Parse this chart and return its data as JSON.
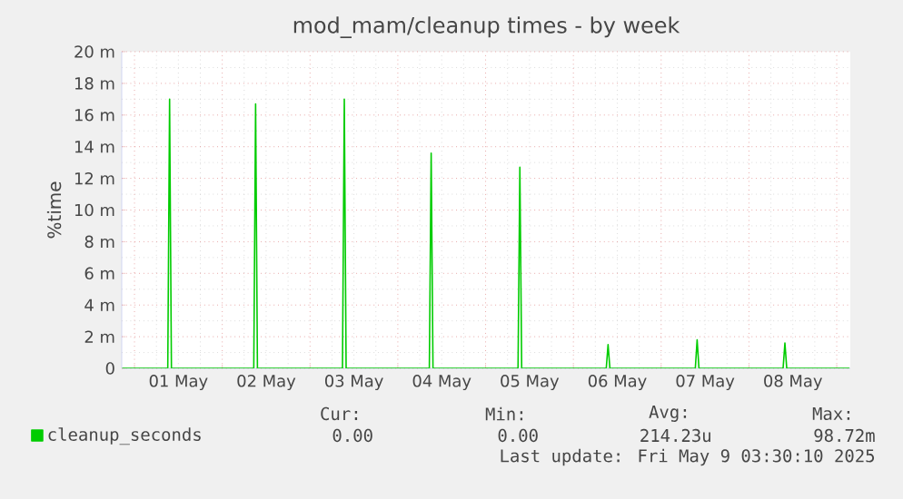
{
  "chart_data": {
    "type": "line",
    "title": "mod_mam/cleanup times - by week",
    "ylabel": "%time",
    "xlim": [
      "2025-04-30T20:31",
      "2025-05-09T03:43"
    ],
    "ylim": [
      0,
      20
    ],
    "xticks": [
      {
        "value": "2025-05-01",
        "label": null
      },
      {
        "value": "2025-05-02",
        "label": null
      },
      {
        "value": "2025-05-03",
        "label": null
      },
      {
        "value": "2025-05-04",
        "label": null
      },
      {
        "value": "2025-05-05",
        "label": null
      },
      {
        "value": "2025-05-06",
        "label": null
      },
      {
        "value": "2025-05-07",
        "label": null
      },
      {
        "value": "2025-05-08",
        "label": null
      },
      {
        "value": "2025-05-09",
        "label": null
      },
      {
        "value": "2025-05-01T12:00",
        "label": "01 May"
      },
      {
        "value": "2025-05-02T12:00",
        "label": "02 May"
      },
      {
        "value": "2025-05-03T12:00",
        "label": "03 May"
      },
      {
        "value": "2025-05-04T12:00",
        "label": "04 May"
      },
      {
        "value": "2025-05-05T12:00",
        "label": "05 May"
      },
      {
        "value": "2025-05-06T12:00",
        "label": "06 May"
      },
      {
        "value": "2025-05-07T12:00",
        "label": "07 May"
      },
      {
        "value": "2025-05-08T12:00",
        "label": "08 May"
      }
    ],
    "yticks": [
      {
        "value": 0,
        "label": "0"
      },
      {
        "value": 2,
        "label": "2 m"
      },
      {
        "value": 4,
        "label": "4 m"
      },
      {
        "value": 6,
        "label": "6 m"
      },
      {
        "value": 8,
        "label": "8 m"
      },
      {
        "value": 10,
        "label": "10 m"
      },
      {
        "value": 12,
        "label": "12 m"
      },
      {
        "value": 14,
        "label": "14 m"
      },
      {
        "value": 16,
        "label": "16 m"
      },
      {
        "value": 18,
        "label": "18 m"
      },
      {
        "value": 20,
        "label": "20 m"
      }
    ],
    "grid": true,
    "legend": "bottom",
    "series": [
      {
        "name": "cleanup_seconds",
        "color": "#00cc00",
        "x": [
          "2025-04-30T20:40",
          "2025-05-01T09:06",
          "2025-05-01T09:36",
          "2025-05-01T10:06",
          "2025-05-02T08:37",
          "2025-05-02T09:07",
          "2025-05-02T09:37",
          "2025-05-03T08:52",
          "2025-05-03T09:22",
          "2025-05-03T09:52",
          "2025-05-04T08:37",
          "2025-05-04T09:07",
          "2025-05-04T09:37",
          "2025-05-05T08:52",
          "2025-05-05T09:22",
          "2025-05-05T09:52",
          "2025-05-06T08:59",
          "2025-05-06T09:29",
          "2025-05-06T09:59",
          "2025-05-07T09:20",
          "2025-05-07T09:50",
          "2025-05-07T10:20",
          "2025-05-08T09:20",
          "2025-05-08T09:50",
          "2025-05-08T10:20",
          "2025-05-09T03:30"
        ],
        "values": [
          0,
          0,
          17.0,
          0,
          0,
          16.7,
          0,
          0,
          17.0,
          0,
          0,
          13.6,
          0,
          0,
          12.7,
          0,
          0,
          1.5,
          0,
          0,
          1.8,
          0,
          0,
          1.6,
          0,
          0
        ]
      }
    ],
    "annotations": [
      "Cur:",
      "Min:",
      "Avg:",
      "Max:",
      "0.00",
      "0.00",
      "214.23u",
      "98.72m",
      "Last update: Fri May 9 03:30:10 2025"
    ]
  }
}
